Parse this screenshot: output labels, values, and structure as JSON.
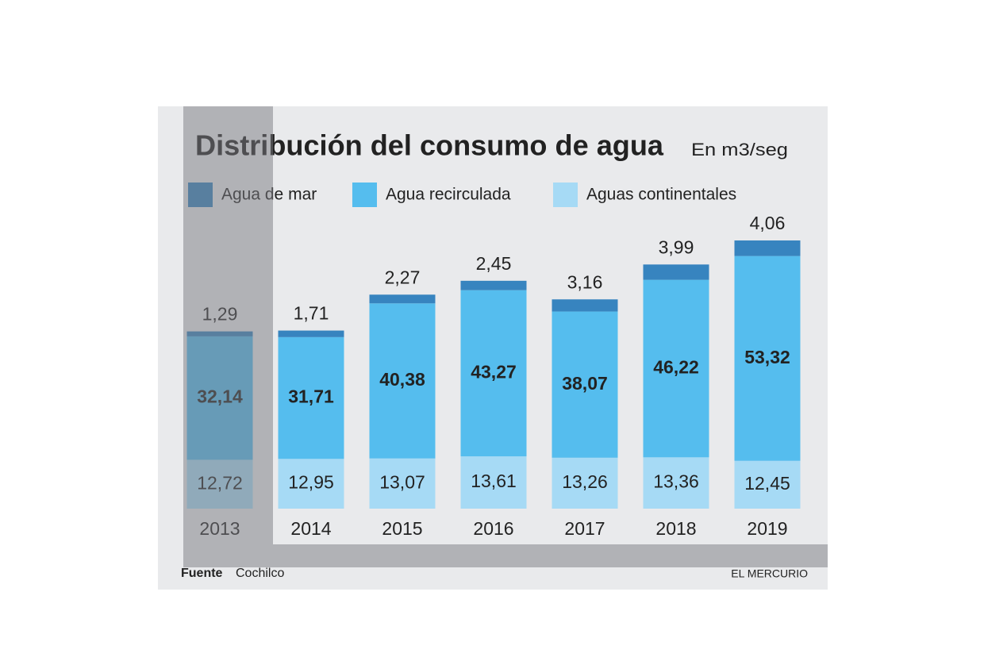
{
  "chart_data": {
    "type": "stacked_bar",
    "title": "Distribución del consumo de agua",
    "subtitle": "En m3/seg",
    "categories": [
      "2013",
      "2014",
      "2015",
      "2016",
      "2017",
      "2018",
      "2019"
    ],
    "series": [
      {
        "name": "Aguas continentales",
        "color": "#a6daf5",
        "values": [
          12.72,
          12.95,
          13.07,
          13.61,
          13.26,
          13.36,
          12.45
        ],
        "value_labels": [
          "12,72",
          "12,95",
          "13,07",
          "13,61",
          "13,26",
          "13,36",
          "12,45"
        ]
      },
      {
        "name": "Agua recirculada",
        "color": "#55bdee",
        "values": [
          32.14,
          31.71,
          40.38,
          43.27,
          38.07,
          46.22,
          53.32
        ],
        "value_labels": [
          "32,14",
          "31,71",
          "40,38",
          "43,27",
          "38,07",
          "46,22",
          "53,32"
        ]
      },
      {
        "name": "Agua de mar",
        "color": "#3784bf",
        "values": [
          1.29,
          1.71,
          2.27,
          2.45,
          3.16,
          3.99,
          4.06
        ],
        "value_labels": [
          "1,29",
          "1,71",
          "2,27",
          "2,45",
          "3,16",
          "3,99",
          "4,06"
        ]
      }
    ],
    "legend_order": [
      2,
      1,
      0
    ],
    "source_label": "Fuente",
    "source": "Cochilco",
    "credit": "EL MERCURIO"
  }
}
